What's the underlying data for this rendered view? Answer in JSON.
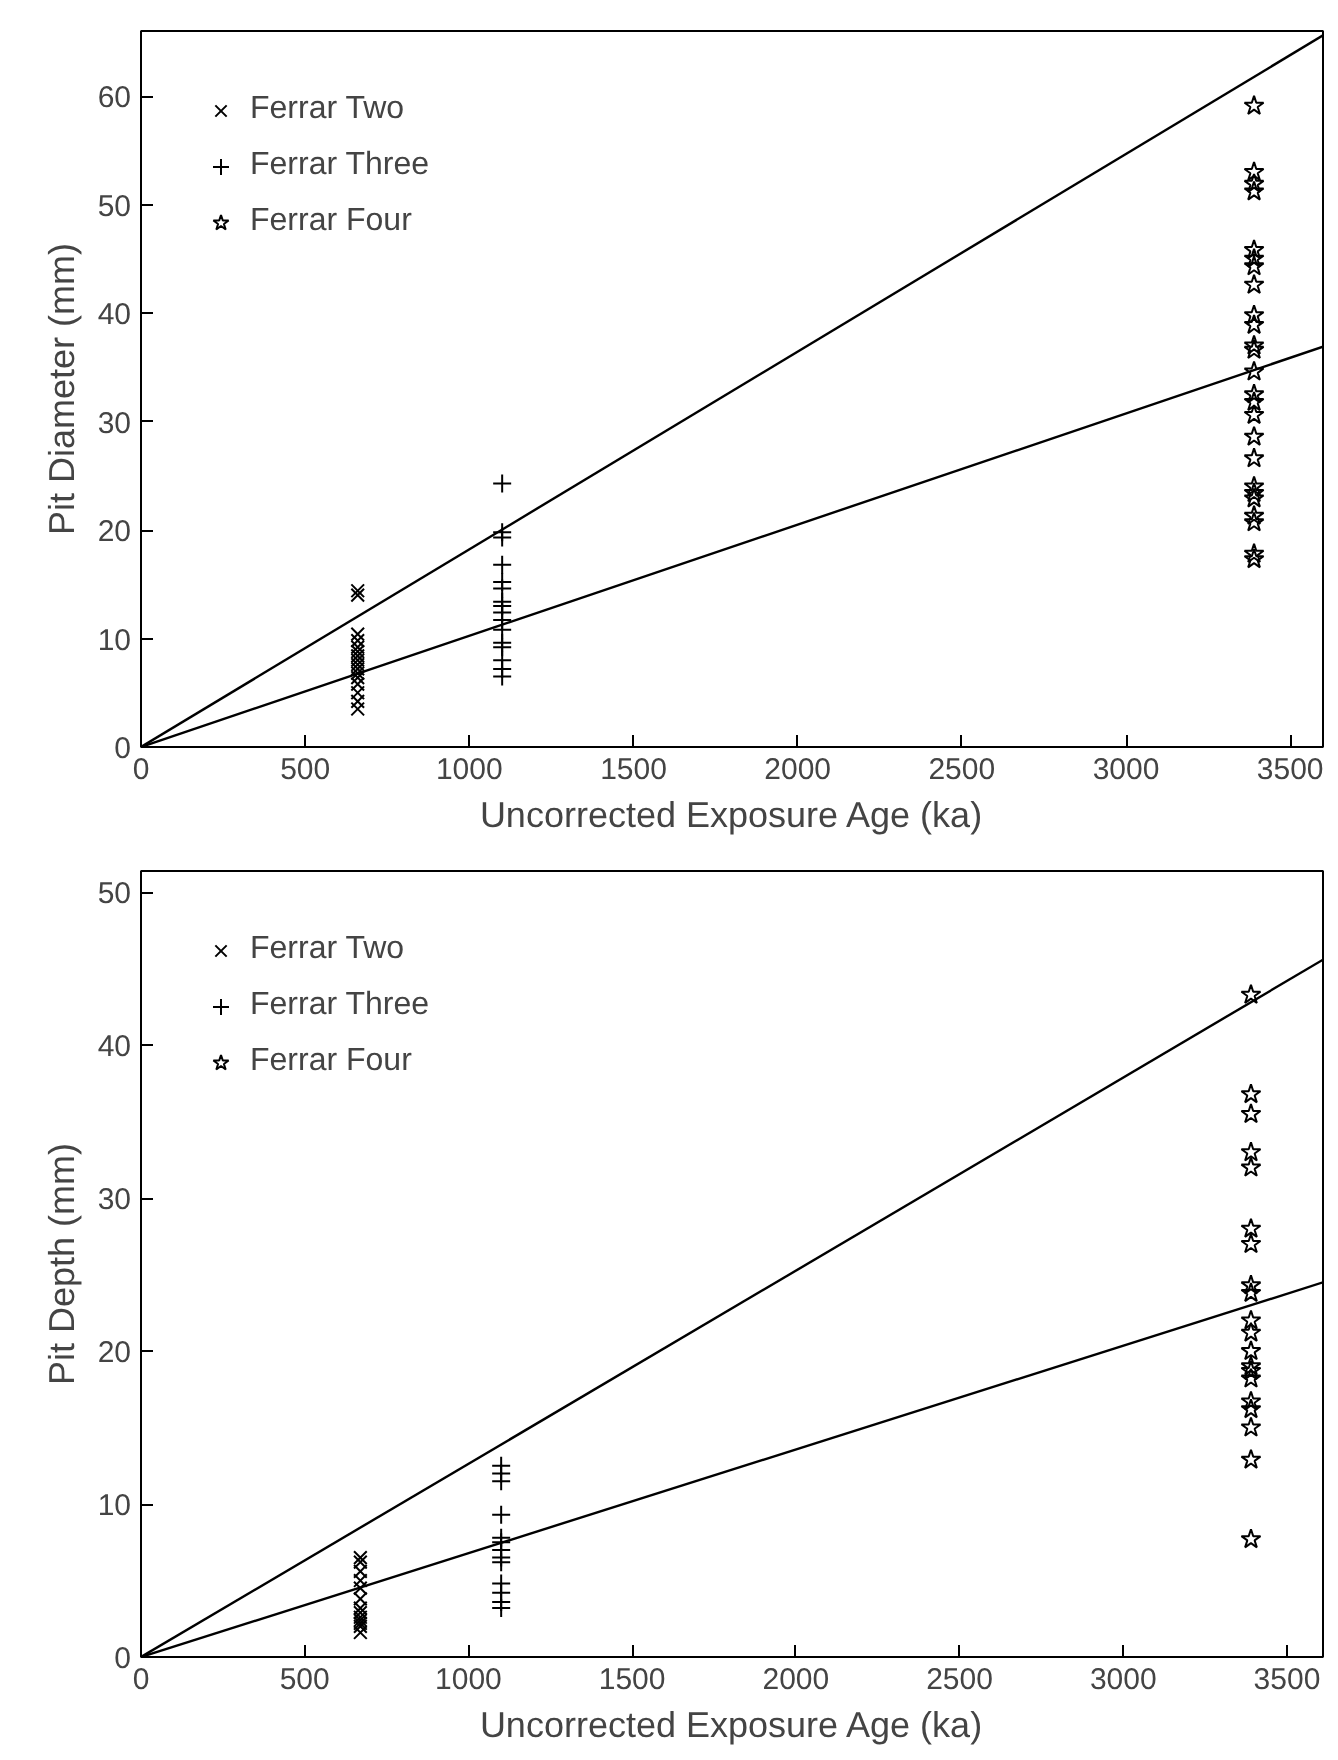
{
  "chart_data": [
    {
      "type": "scatter",
      "xlabel": "Uncorrected Exposure Age (ka)",
      "ylabel": "Pit Diameter (mm)",
      "xlim": [
        0,
        3600
      ],
      "ylim": [
        0,
        66
      ],
      "xticks": [
        0,
        500,
        1000,
        1500,
        2000,
        2500,
        3000,
        3500
      ],
      "yticks": [
        0,
        10,
        20,
        30,
        40,
        50,
        60
      ],
      "grid": false,
      "legend": "top left",
      "series": [
        {
          "name": "Ferrar Two",
          "color": "#000000",
          "marker": "x",
          "x": [
            660,
            660,
            660,
            660,
            660,
            660,
            660,
            660,
            660,
            660,
            660,
            660,
            660,
            660,
            660,
            660
          ],
          "values": [
            14.4,
            14.0,
            10.4,
            9.8,
            9.2,
            8.8,
            8.4,
            8.0,
            7.6,
            7.2,
            6.8,
            6.4,
            5.8,
            5.0,
            4.2,
            3.5
          ]
        },
        {
          "name": "Ferrar Three",
          "color": "#000000",
          "marker": "cross",
          "x": [
            1100,
            1100,
            1100,
            1100,
            1100,
            1100,
            1100,
            1100,
            1100,
            1100,
            1100,
            1100,
            1100,
            1100,
            1100,
            1100
          ],
          "values": [
            24.3,
            19.8,
            19.3,
            16.8,
            15.2,
            14.6,
            13.4,
            13.0,
            12.4,
            11.7,
            10.8,
            9.6,
            9.2,
            8.0,
            7.2,
            6.5
          ]
        },
        {
          "name": "Ferrar Four",
          "color": "#000000",
          "marker": "star",
          "x": [
            3390,
            3390,
            3390,
            3390,
            3390,
            3390,
            3390,
            3390,
            3390,
            3390,
            3390,
            3390,
            3390,
            3390,
            3390,
            3390,
            3390,
            3390,
            3390,
            3390,
            3390,
            3390,
            3390,
            3390,
            3390
          ],
          "values": [
            59.1,
            53.0,
            51.9,
            51.2,
            45.8,
            45.0,
            44.3,
            42.6,
            39.8,
            38.9,
            37.0,
            36.6,
            34.6,
            32.5,
            31.8,
            30.6,
            28.6,
            26.6,
            24.0,
            23.4,
            22.9,
            21.3,
            20.7,
            17.8,
            17.3
          ]
        },
        {
          "type": "line",
          "color": "#000000",
          "x": [
            0,
            3600
          ],
          "values": [
            0,
            65.6
          ]
        },
        {
          "type": "line",
          "color": "#000000",
          "x": [
            0,
            3600
          ],
          "values": [
            0,
            36.9
          ]
        }
      ]
    },
    {
      "type": "scatter",
      "xlabel": "Uncorrected Exposure Age (ka)",
      "ylabel": "Pit Depth (mm)",
      "xlim": [
        0,
        3610
      ],
      "ylim": [
        0,
        51.4
      ],
      "xticks": [
        0,
        500,
        1000,
        1500,
        2000,
        2500,
        3000,
        3500
      ],
      "yticks": [
        0,
        10,
        20,
        30,
        40,
        50
      ],
      "grid": false,
      "legend": "top left",
      "series": [
        {
          "name": "Ferrar Two",
          "color": "#000000",
          "marker": "x",
          "x": [
            670,
            670,
            670,
            670,
            670,
            670,
            670,
            670,
            670,
            670,
            670,
            670,
            670
          ],
          "values": [
            6.5,
            6.2,
            5.6,
            5.0,
            4.5,
            3.8,
            3.2,
            2.9,
            2.6,
            2.4,
            2.2,
            2.0,
            1.6
          ]
        },
        {
          "name": "Ferrar Three",
          "color": "#000000",
          "marker": "cross",
          "x": [
            1100,
            1100,
            1100,
            1100,
            1100,
            1100,
            1100,
            1100,
            1100,
            1100,
            1100,
            1100,
            1100
          ],
          "values": [
            12.5,
            12.0,
            11.5,
            9.3,
            7.8,
            7.5,
            7.0,
            6.5,
            6.2,
            4.8,
            4.2,
            3.6,
            3.2
          ]
        },
        {
          "name": "Ferrar Four",
          "color": "#000000",
          "marker": "star",
          "x": [
            3390,
            3390,
            3390,
            3390,
            3390,
            3390,
            3390,
            3390,
            3390,
            3390,
            3390,
            3390,
            3390,
            3390,
            3390,
            3390,
            3390,
            3390,
            3390,
            3390
          ],
          "values": [
            43.3,
            36.8,
            35.5,
            33.0,
            32.0,
            28.0,
            27.0,
            24.3,
            23.8,
            22.0,
            21.2,
            20.0,
            19.0,
            18.7,
            18.2,
            16.7,
            16.2,
            15.0,
            12.9,
            7.7
          ]
        },
        {
          "type": "line",
          "color": "#000000",
          "x": [
            0,
            3610
          ],
          "values": [
            0,
            45.6
          ]
        },
        {
          "type": "line",
          "color": "#000000",
          "x": [
            0,
            3610
          ],
          "values": [
            0,
            24.5
          ]
        }
      ]
    }
  ]
}
